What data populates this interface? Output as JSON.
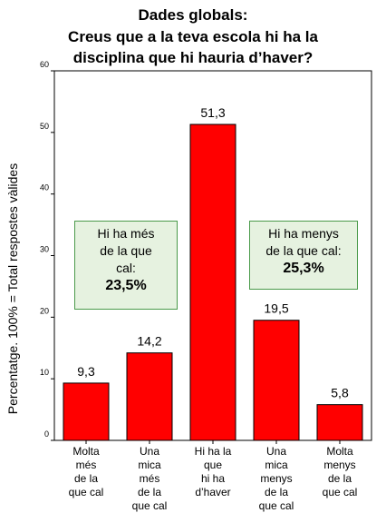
{
  "title_lines": [
    "Dades globals:",
    "Creus que a la teva escola hi ha la",
    "disciplina que hi hauria d’haver?"
  ],
  "chart_data": {
    "type": "bar",
    "title": "Dades globals: Creus que a la teva escola hi ha la disciplina que hi hauria d’haver?",
    "ylabel": "Percentatge. 100% = Total respostes vàlides",
    "xlabel": "",
    "ylim": [
      0,
      60
    ],
    "yticks": [
      0,
      10,
      20,
      30,
      40,
      50,
      60
    ],
    "categories": [
      [
        "Molta",
        "més",
        "de la",
        "que cal"
      ],
      [
        "Una",
        "mica",
        "més",
        "de la",
        "que cal"
      ],
      [
        "Hi ha la",
        "que",
        "hi ha",
        "d’haver"
      ],
      [
        "Una",
        "mica",
        "menys",
        "de la",
        "que cal"
      ],
      [
        "Molta",
        "menys",
        "de la",
        "que cal"
      ]
    ],
    "values": [
      9.3,
      14.2,
      51.3,
      19.5,
      5.8
    ],
    "value_labels": [
      "9,3",
      "14,2",
      "51,3",
      "19,5",
      "5,8"
    ],
    "bar_color": "#ff0000",
    "grid": false
  },
  "annotations": {
    "more": {
      "lines": [
        "Hi ha més",
        "de la que",
        "cal:"
      ],
      "value": "23,5%"
    },
    "less": {
      "lines": [
        "Hi ha menys",
        "de la que cal:"
      ],
      "value": "25,3%"
    }
  }
}
